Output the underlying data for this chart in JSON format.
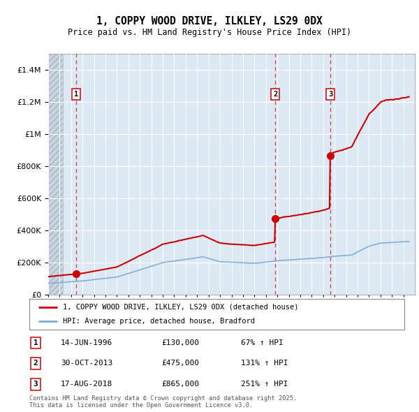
{
  "title_line1": "1, COPPY WOOD DRIVE, ILKLEY, LS29 0DX",
  "title_line2": "Price paid vs. HM Land Registry's House Price Index (HPI)",
  "ylim": [
    0,
    1500000
  ],
  "yticks": [
    0,
    200000,
    400000,
    600000,
    800000,
    1000000,
    1200000,
    1400000
  ],
  "background_color": "#ffffff",
  "plot_bg_color": "#dce9f5",
  "grid_color": "#ffffff",
  "sale_dates_num": [
    1996.45,
    2013.83,
    2018.63
  ],
  "sale_prices": [
    130000,
    475000,
    865000
  ],
  "sale_labels": [
    "1",
    "2",
    "3"
  ],
  "dashed_line_color": "#cc0000",
  "property_line_color": "#cc0000",
  "hpi_line_color": "#7aadd4",
  "legend_property": "1, COPPY WOOD DRIVE, ILKLEY, LS29 0DX (detached house)",
  "legend_hpi": "HPI: Average price, detached house, Bradford",
  "table_rows": [
    {
      "num": "1",
      "date": "14-JUN-1996",
      "price": "£130,000",
      "hpi": "67% ↑ HPI"
    },
    {
      "num": "2",
      "date": "30-OCT-2013",
      "price": "£475,000",
      "hpi": "131% ↑ HPI"
    },
    {
      "num": "3",
      "date": "17-AUG-2018",
      "price": "£865,000",
      "hpi": "251% ↑ HPI"
    }
  ],
  "footnote": "Contains HM Land Registry data © Crown copyright and database right 2025.\nThis data is licensed under the Open Government Licence v3.0.",
  "xmin": 1994,
  "xmax": 2026
}
